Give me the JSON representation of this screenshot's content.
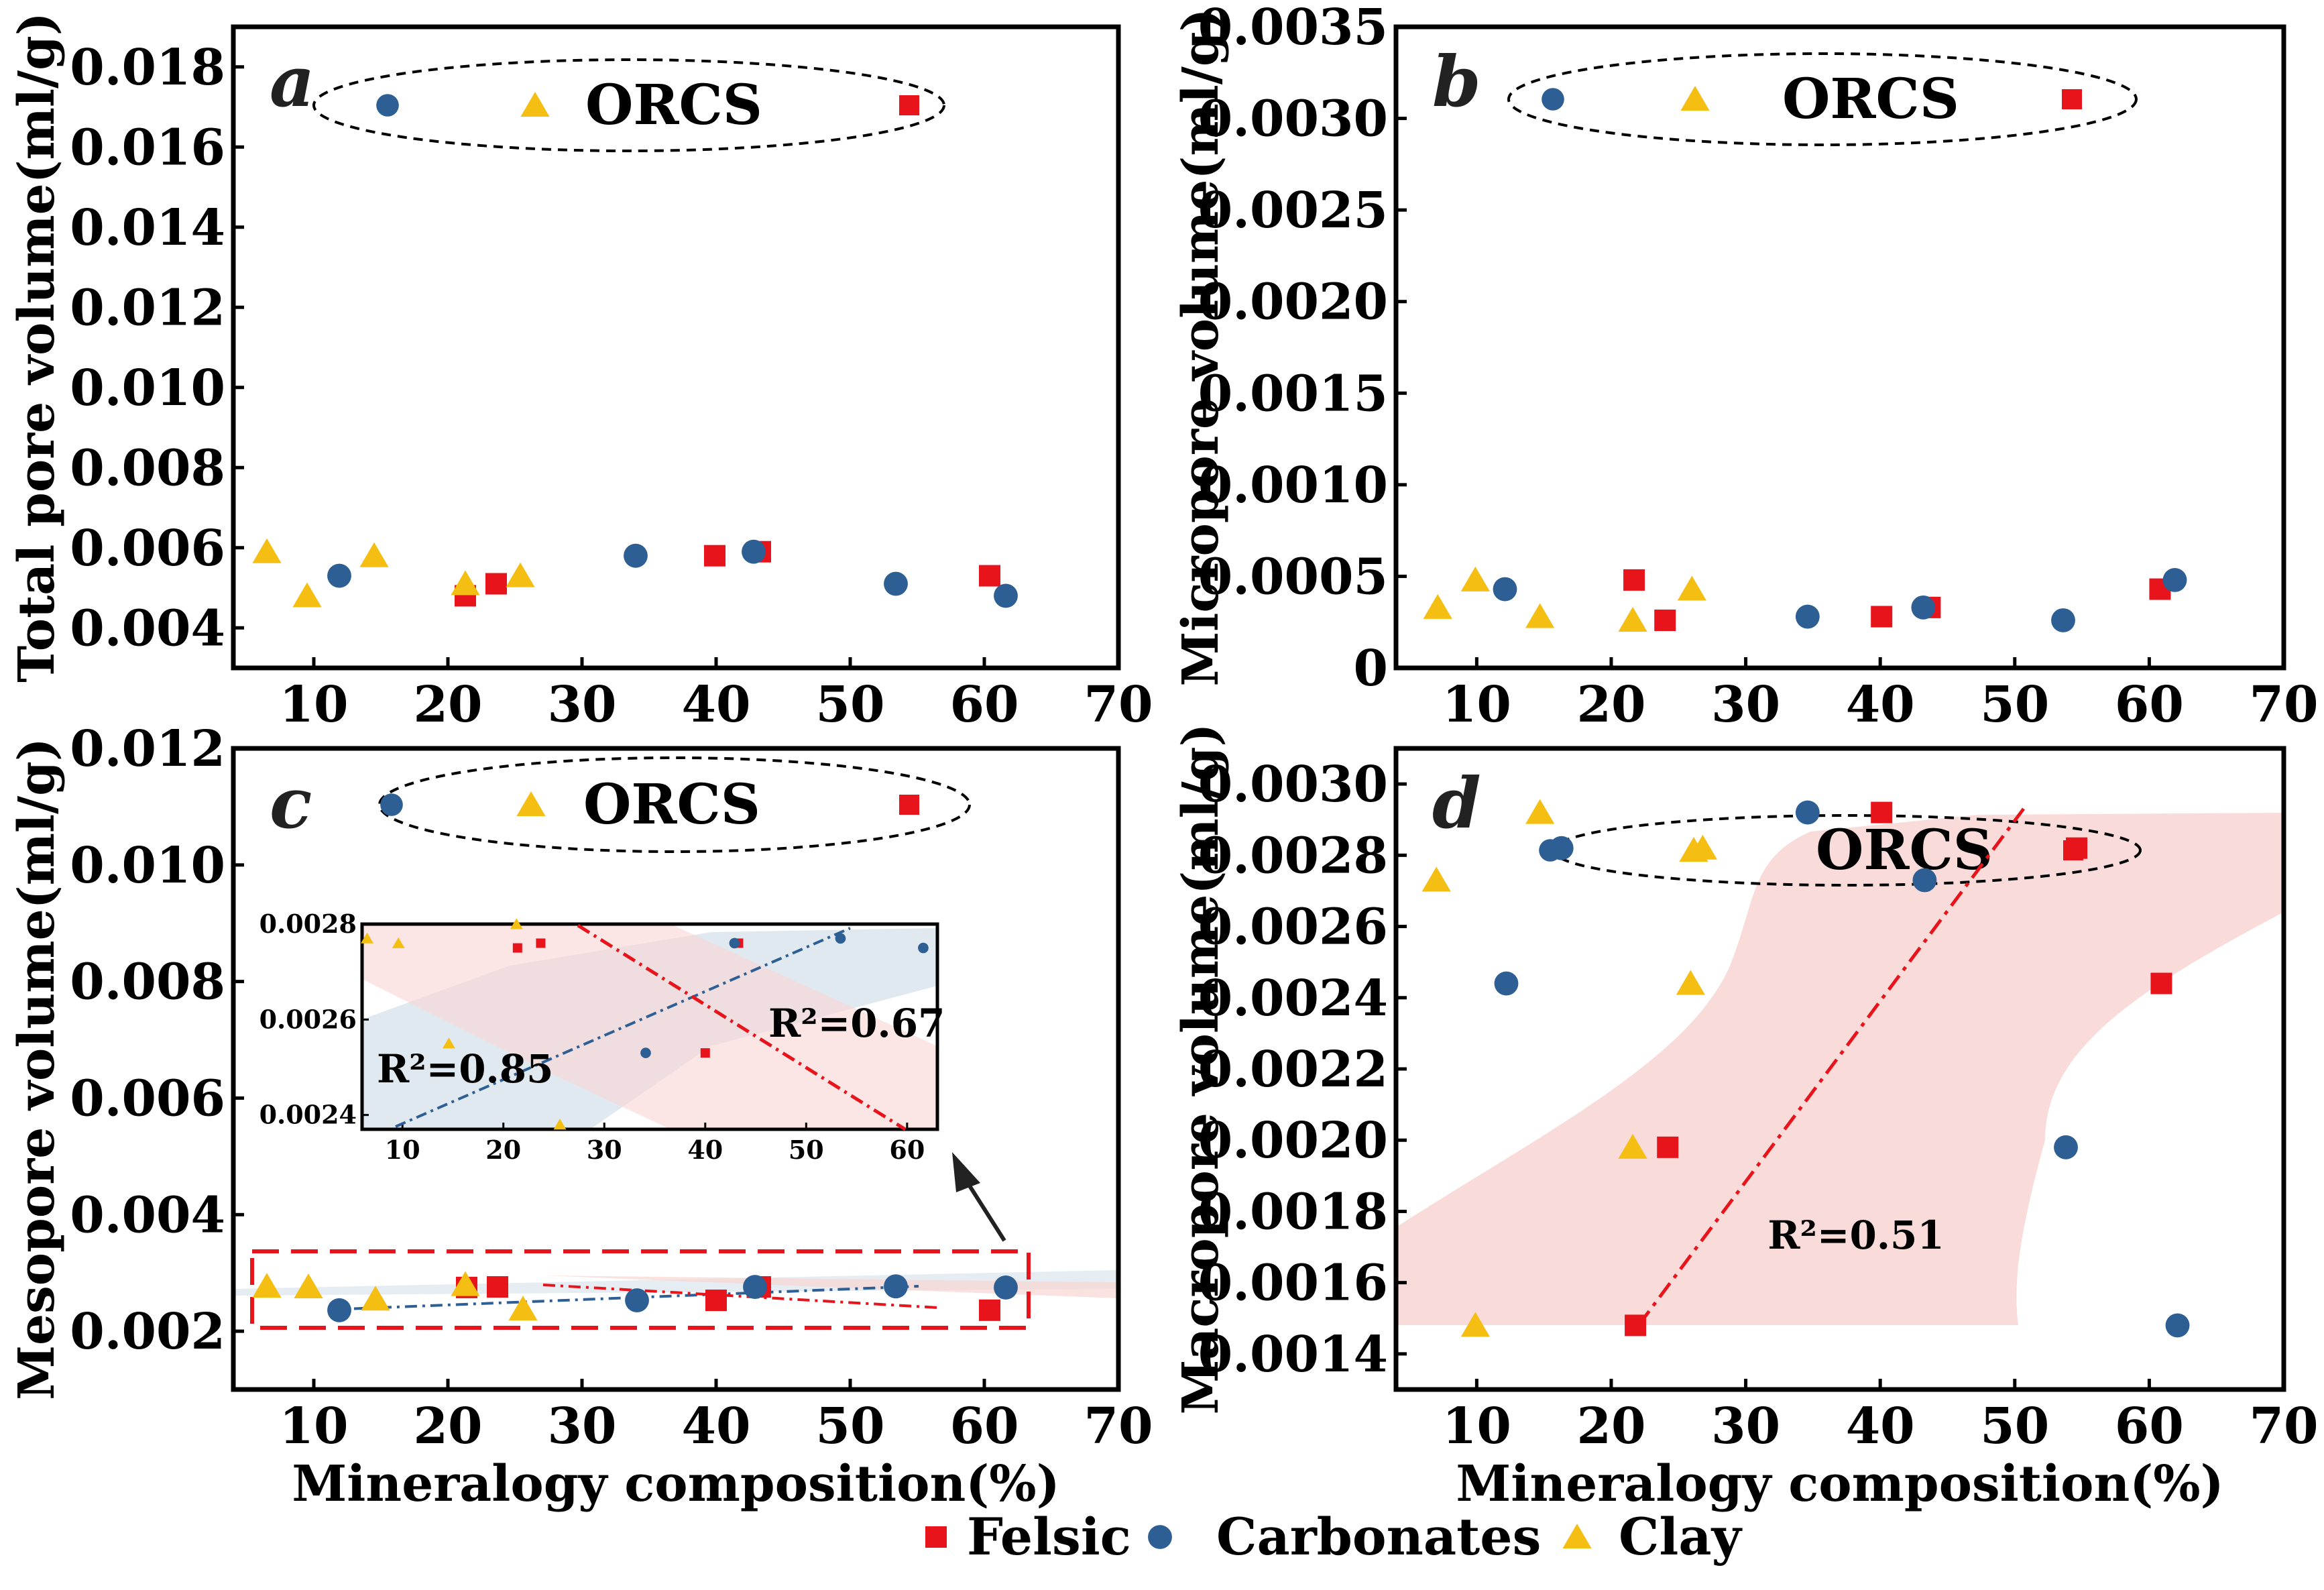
{
  "legend": {
    "felsic": "Felsic",
    "carbonates": "Carbonates",
    "clay": "Clay"
  },
  "colors": {
    "felsic": "#e8141c",
    "carbonates": "#2d5f94",
    "clay": "#f4be12",
    "band_felsic": "#f8d6d3",
    "band_carb": "#d6e1ea"
  },
  "chart_data": [
    {
      "id": "a",
      "type": "scatter",
      "panel_label": "a",
      "ylabel": "Total pore volume(ml/g)",
      "xlabel": "",
      "xlim": [
        4,
        70
      ],
      "ylim": [
        0.003,
        0.019
      ],
      "xticks": [
        "10",
        "20",
        "30",
        "40",
        "50",
        "60",
        "70"
      ],
      "yticks": [
        "0.004",
        "0.006",
        "0.008",
        "0.010",
        "0.012",
        "0.014",
        "0.016",
        "0.018"
      ],
      "annotation": "ORCS",
      "series": [
        {
          "name": "Felsic",
          "marker": "square",
          "x": [
            21.3,
            23.6,
            39.9,
            43.3,
            60.4
          ],
          "y": [
            0.0048,
            0.0051,
            0.0058,
            0.0059,
            0.0053
          ]
        },
        {
          "name": "Carbonates",
          "marker": "circle",
          "x": [
            11.9,
            34.0,
            42.8,
            53.4,
            61.6
          ],
          "y": [
            0.0053,
            0.0058,
            0.0059,
            0.0051,
            0.0048
          ]
        },
        {
          "name": "Clay",
          "marker": "triangle",
          "x": [
            6.5,
            9.5,
            14.5,
            21.3,
            25.4
          ],
          "y": [
            0.0059,
            0.0048,
            0.0058,
            0.0051,
            0.0053
          ]
        }
      ]
    },
    {
      "id": "b",
      "type": "scatter",
      "panel_label": "b",
      "ylabel": "Micropore volume(ml/g)",
      "xlabel": "",
      "xlim": [
        4,
        70
      ],
      "ylim": [
        0,
        0.0035
      ],
      "xticks": [
        "10",
        "20",
        "30",
        "40",
        "50",
        "60",
        "70"
      ],
      "yticks": [
        "0",
        "0.0005",
        "0.0010",
        "0.0015",
        "0.0020",
        "0.0025",
        "0.0030",
        "0.0035"
      ],
      "annotation": "ORCS",
      "series": [
        {
          "name": "Felsic",
          "marker": "square",
          "x": [
            21.7,
            24.0,
            40.1,
            43.7,
            60.8
          ],
          "y": [
            0.00048,
            0.00026,
            0.00028,
            0.00033,
            0.00043
          ]
        },
        {
          "name": "Carbonates",
          "marker": "circle",
          "x": [
            12.1,
            34.6,
            43.2,
            53.6,
            61.9
          ],
          "y": [
            0.00043,
            0.00028,
            0.00033,
            0.00026,
            0.00048
          ]
        },
        {
          "name": "Clay",
          "marker": "triangle",
          "x": [
            7.1,
            9.9,
            14.7,
            21.6,
            26.0
          ],
          "y": [
            0.00033,
            0.00048,
            0.00028,
            0.00026,
            0.00043
          ]
        }
      ]
    },
    {
      "id": "c",
      "type": "scatter",
      "panel_label": "c",
      "ylabel": "Mesopore volume(ml/g)",
      "xlabel": "Mineralogy composition(%)",
      "xlim": [
        4,
        70
      ],
      "ylim": [
        0.001,
        0.012
      ],
      "xticks": [
        "10",
        "20",
        "30",
        "40",
        "50",
        "60",
        "70"
      ],
      "yticks": [
        "0.002",
        "0.004",
        "0.006",
        "0.008",
        "0.010",
        "0.012"
      ],
      "annotation": "ORCS",
      "series": [
        {
          "name": "Felsic",
          "marker": "square",
          "x": [
            21.4,
            23.7,
            40.0,
            43.3,
            60.4
          ],
          "y": [
            0.00275,
            0.00276,
            0.00253,
            0.00276,
            0.00236
          ]
        },
        {
          "name": "Carbonates",
          "marker": "circle",
          "x": [
            11.9,
            34.1,
            42.9,
            53.4,
            61.6
          ],
          "y": [
            0.00236,
            0.00253,
            0.00276,
            0.00277,
            0.00275
          ]
        },
        {
          "name": "Clay",
          "marker": "triangle",
          "x": [
            6.5,
            9.6,
            14.6,
            21.3,
            25.6
          ],
          "y": [
            0.00277,
            0.00276,
            0.00255,
            0.0028,
            0.00238
          ]
        }
      ],
      "inset": {
        "xlim": [
          6,
          63
        ],
        "ylim": [
          0.00237,
          0.0028
        ],
        "xticks": [
          "10",
          "20",
          "30",
          "40",
          "50",
          "60"
        ],
        "yticks": [
          "0.0024",
          "0.0026",
          "0.0028"
        ],
        "r2_carbonates": "R²=0.85",
        "r2_felsic": "R²=0.67"
      }
    },
    {
      "id": "d",
      "type": "scatter",
      "panel_label": "d",
      "ylabel": "Macropore volume(ml/g)",
      "xlabel": "Mineralogy composition(%)",
      "xlim": [
        4,
        70
      ],
      "ylim": [
        0.0013,
        0.0031
      ],
      "xticks": [
        "10",
        "20",
        "30",
        "40",
        "50",
        "60",
        "70"
      ],
      "yticks": [
        "0.0014",
        "0.0016",
        "0.0018",
        "0.0020",
        "0.0022",
        "0.0024",
        "0.0026",
        "0.0028",
        "0.0030"
      ],
      "annotation": "ORCS",
      "r2_felsic": "R²=0.51",
      "series": [
        {
          "name": "Felsic",
          "marker": "square",
          "x": [
            21.8,
            24.2,
            40.1,
            54.6,
            60.9
          ],
          "y": [
            0.00148,
            0.00198,
            0.00292,
            0.00282,
            0.00244
          ]
        },
        {
          "name": "Carbonates",
          "marker": "circle",
          "x": [
            12.2,
            16.3,
            34.6,
            43.3,
            53.8,
            62.1
          ],
          "y": [
            0.00244,
            0.00282,
            0.00292,
            0.00273,
            0.00198,
            0.00148
          ]
        },
        {
          "name": "Clay",
          "marker": "triangle",
          "x": [
            7.0,
            9.9,
            14.7,
            21.6,
            25.9,
            26.8
          ],
          "y": [
            0.00273,
            0.00148,
            0.00292,
            0.00198,
            0.00244,
            0.00282
          ]
        }
      ]
    }
  ]
}
